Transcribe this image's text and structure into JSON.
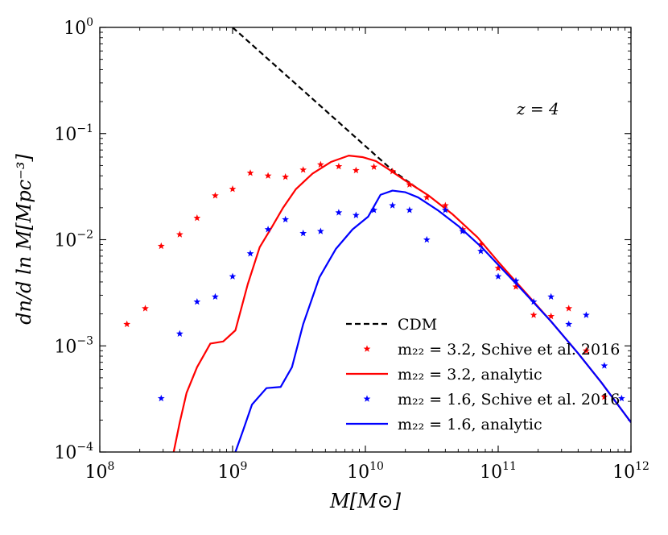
{
  "chart_data": {
    "type": "line",
    "xscale": "log",
    "yscale": "log",
    "xlim": [
      100000000.0,
      1000000000000.0
    ],
    "ylim": [
      0.0001,
      1
    ],
    "xlabel": "M[M⊙]",
    "ylabel": "dn/d ln M[Mpc⁻³]",
    "annotation": "z = 4",
    "x_ticks": [
      {
        "value": 100000000.0,
        "base": "10",
        "exp": "8"
      },
      {
        "value": 1000000000.0,
        "base": "10",
        "exp": "9"
      },
      {
        "value": 10000000000.0,
        "base": "10",
        "exp": "10"
      },
      {
        "value": 100000000000.0,
        "base": "10",
        "exp": "11"
      },
      {
        "value": 1000000000000.0,
        "base": "10",
        "exp": "12"
      }
    ],
    "y_ticks": [
      {
        "value": 0.0001,
        "base": "10",
        "exp": "−4"
      },
      {
        "value": 0.001,
        "base": "10",
        "exp": "−3"
      },
      {
        "value": 0.01,
        "base": "10",
        "exp": "−2"
      },
      {
        "value": 0.1,
        "base": "10",
        "exp": "−1"
      },
      {
        "value": 1,
        "base": "10",
        "exp": "0"
      }
    ],
    "series": [
      {
        "name": "CDM",
        "label": "CDM",
        "kind": "line",
        "dash": true,
        "color": "#000000",
        "points": [
          [
            1000000000.0,
            1.0
          ],
          [
            16000000000.0,
            0.045
          ],
          [
            25000000000.0,
            0.03
          ]
        ]
      },
      {
        "name": "m22=3.2 Schive",
        "label": "m₂₂ = 3.2, Schive et al. 2016",
        "kind": "scatter",
        "color": "#ff0000",
        "points": [
          [
            160000000.0,
            0.0016
          ],
          [
            220000000.0,
            0.00225
          ],
          [
            290000000.0,
            0.0087
          ],
          [
            400000000.0,
            0.0112
          ],
          [
            540000000.0,
            0.016
          ],
          [
            740000000.0,
            0.026
          ],
          [
            1000000000.0,
            0.03
          ],
          [
            1360000000.0,
            0.0425
          ],
          [
            1850000000.0,
            0.04
          ],
          [
            2500000000.0,
            0.039
          ],
          [
            3400000000.0,
            0.0455
          ],
          [
            4600000000.0,
            0.051
          ],
          [
            6300000000.0,
            0.049
          ],
          [
            8500000000.0,
            0.045
          ],
          [
            11600000000.0,
            0.0485
          ],
          [
            16000000000.0,
            0.044
          ],
          [
            21500000000.0,
            0.033
          ],
          [
            29000000000.0,
            0.025
          ],
          [
            40000000000.0,
            0.021
          ],
          [
            54000000000.0,
            0.0125
          ],
          [
            74000000000.0,
            0.009
          ],
          [
            100000000000.0,
            0.0054
          ],
          [
            136000000000.0,
            0.0036
          ],
          [
            185000000000.0,
            0.00195
          ],
          [
            250000000000.0,
            0.0019
          ],
          [
            340000000000.0,
            0.00225
          ],
          [
            460000000000.0,
            0.0009
          ],
          [
            630000000000.0,
            0.00033
          ]
        ]
      },
      {
        "name": "m22=3.2 analytic",
        "label": "m₂₂ = 3.2, analytic",
        "kind": "line",
        "color": "#ff0000",
        "points": [
          [
            360000000.0,
            0.0001
          ],
          [
            400000000.0,
            0.00019
          ],
          [
            450000000.0,
            0.00036
          ],
          [
            540000000.0,
            0.00063
          ],
          [
            680000000.0,
            0.00105
          ],
          [
            850000000.0,
            0.0011
          ],
          [
            1050000000.0,
            0.0014
          ],
          [
            1300000000.0,
            0.0038
          ],
          [
            1600000000.0,
            0.0085
          ],
          [
            2000000000.0,
            0.0135
          ],
          [
            2400000000.0,
            0.02
          ],
          [
            3000000000.0,
            0.03
          ],
          [
            4000000000.0,
            0.042
          ],
          [
            5500000000.0,
            0.054
          ],
          [
            7500000000.0,
            0.062
          ],
          [
            9500000000.0,
            0.06
          ],
          [
            12000000000.0,
            0.055
          ],
          [
            15000000000.0,
            0.046
          ],
          [
            20000000000.0,
            0.036
          ],
          [
            30000000000.0,
            0.026
          ],
          [
            45000000000.0,
            0.0175
          ],
          [
            70000000000.0,
            0.0105
          ],
          [
            100000000000.0,
            0.0062
          ],
          [
            150000000000.0,
            0.0035
          ],
          [
            250000000000.0,
            0.0017
          ],
          [
            400000000000.0,
            0.00085
          ],
          [
            600000000000.0,
            0.00045
          ],
          [
            1000000000000.0,
            0.00019
          ]
        ]
      },
      {
        "name": "m22=1.6 Schive",
        "label": "m₂₂ = 1.6, Schive et al. 2016",
        "kind": "scatter",
        "color": "#0000ff",
        "points": [
          [
            290000000.0,
            0.00032
          ],
          [
            400000000.0,
            0.0013
          ],
          [
            540000000.0,
            0.0026
          ],
          [
            740000000.0,
            0.0029
          ],
          [
            1000000000.0,
            0.0045
          ],
          [
            1360000000.0,
            0.0074
          ],
          [
            1850000000.0,
            0.0125
          ],
          [
            2500000000.0,
            0.0155
          ],
          [
            3400000000.0,
            0.0115
          ],
          [
            4600000000.0,
            0.012
          ],
          [
            6300000000.0,
            0.018
          ],
          [
            8500000000.0,
            0.017
          ],
          [
            11600000000.0,
            0.019
          ],
          [
            16000000000.0,
            0.021
          ],
          [
            21500000000.0,
            0.019
          ],
          [
            29000000000.0,
            0.01
          ],
          [
            40000000000.0,
            0.019
          ],
          [
            54000000000.0,
            0.012
          ],
          [
            74000000000.0,
            0.0078
          ],
          [
            100000000000.0,
            0.0045
          ],
          [
            136000000000.0,
            0.0041
          ],
          [
            185000000000.0,
            0.0026
          ],
          [
            250000000000.0,
            0.0029
          ],
          [
            340000000000.0,
            0.0016
          ],
          [
            460000000000.0,
            0.00195
          ],
          [
            630000000000.0,
            0.00065
          ],
          [
            850000000000.0,
            0.00032
          ]
        ]
      },
      {
        "name": "m22=1.6 analytic",
        "label": "m₂₂ = 1.6, analytic",
        "kind": "line",
        "color": "#0000ff",
        "points": [
          [
            1050000000.0,
            0.0001
          ],
          [
            1200000000.0,
            0.00016
          ],
          [
            1400000000.0,
            0.00028
          ],
          [
            1800000000.0,
            0.0004
          ],
          [
            2300000000.0,
            0.00041
          ],
          [
            2800000000.0,
            0.00063
          ],
          [
            3400000000.0,
            0.0016
          ],
          [
            4500000000.0,
            0.0044
          ],
          [
            6000000000.0,
            0.0082
          ],
          [
            8000000000.0,
            0.0125
          ],
          [
            10500000000.0,
            0.0165
          ],
          [
            13000000000.0,
            0.0265
          ],
          [
            16000000000.0,
            0.029
          ],
          [
            20000000000.0,
            0.028
          ],
          [
            25000000000.0,
            0.025
          ],
          [
            35000000000.0,
            0.019
          ],
          [
            50000000000.0,
            0.0135
          ],
          [
            75000000000.0,
            0.0085
          ],
          [
            100000000000.0,
            0.0058
          ],
          [
            150000000000.0,
            0.0034
          ],
          [
            250000000000.0,
            0.0017
          ],
          [
            400000000000.0,
            0.00085
          ],
          [
            600000000000.0,
            0.00045
          ],
          [
            1000000000000.0,
            0.00019
          ]
        ]
      }
    ],
    "legend": {
      "placement": "lower-right"
    }
  }
}
